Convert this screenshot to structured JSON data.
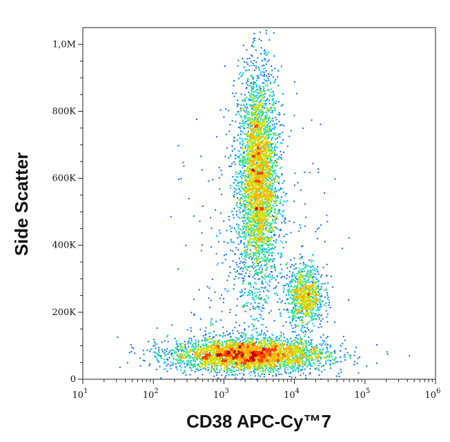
{
  "chart_data": {
    "type": "scatter",
    "subtype": "flow cytometry density (pseudocolor) dot plot",
    "title": "",
    "xlabel": "CD38 APC-Cy™7",
    "ylabel": "Side Scatter",
    "x_scale": "log10",
    "y_scale": "linear",
    "xlim": [
      10,
      1000000
    ],
    "ylim": [
      0,
      1050000
    ],
    "x_ticks": [
      {
        "value": 10,
        "base": "10",
        "exp": "1"
      },
      {
        "value": 100,
        "base": "10",
        "exp": "2"
      },
      {
        "value": 1000,
        "base": "10",
        "exp": "3"
      },
      {
        "value": 10000,
        "base": "10",
        "exp": "4"
      },
      {
        "value": 100000,
        "base": "10",
        "exp": "5"
      },
      {
        "value": 1000000,
        "base": "10",
        "exp": "6"
      }
    ],
    "y_ticks": [
      {
        "value": 0,
        "label": "0"
      },
      {
        "value": 200000,
        "label": "200K"
      },
      {
        "value": 400000,
        "label": "400K"
      },
      {
        "value": 600000,
        "label": "600K"
      },
      {
        "value": 800000,
        "label": "800K"
      },
      {
        "value": 1000000,
        "label": "1,0M"
      }
    ],
    "density_colors": [
      "#0000d0",
      "#0066ff",
      "#00c8ff",
      "#30e080",
      "#c8e000",
      "#ffb000",
      "#ff4000",
      "#c80000"
    ],
    "populations": [
      {
        "center_x": 3000,
        "center_y": 600000,
        "spread_log_x": 0.14,
        "spread_y": 160000,
        "relative_count": 0.42
      },
      {
        "center_x": 2200,
        "center_y": 75000,
        "spread_log_x": 0.55,
        "spread_y": 25000,
        "relative_count": 0.42
      },
      {
        "center_x": 14000,
        "center_y": 250000,
        "spread_log_x": 0.13,
        "spread_y": 45000,
        "relative_count": 0.1
      },
      {
        "center_x": 3000,
        "center_y": 300000,
        "spread_log_x": 0.5,
        "spread_y": 250000,
        "relative_count": 0.06
      }
    ]
  }
}
